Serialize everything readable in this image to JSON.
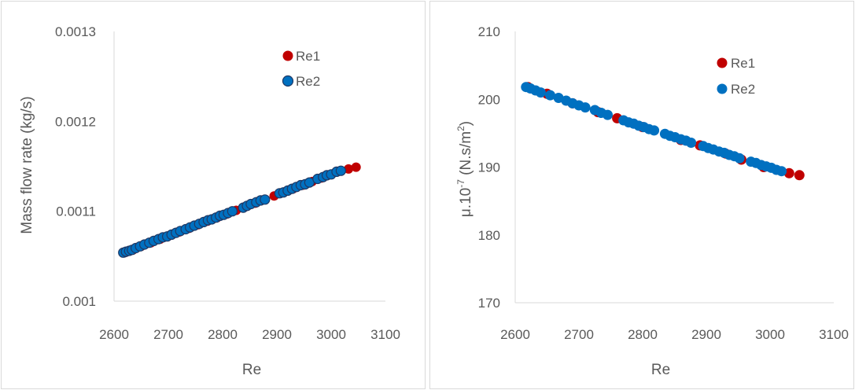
{
  "colors": {
    "Re1": "#C00000",
    "Re2": "#0070C0",
    "Re2_outline": "#1F3864",
    "axis": "#D9D9D9",
    "text": "#595959"
  },
  "chart_data": [
    {
      "type": "scatter",
      "xlabel": "Re",
      "ylabel": "Mass flow rate (kg/s)",
      "xlim": [
        2600,
        3100
      ],
      "ylim": [
        0.001,
        0.0013
      ],
      "xticks": [
        2600,
        2700,
        2800,
        2900,
        3000,
        3100
      ],
      "yticks": [
        0.001,
        0.0011,
        0.0012,
        0.0013
      ],
      "xtick_labels": [
        "2600",
        "2700",
        "2800",
        "2900",
        "3000",
        "3100"
      ],
      "ytick_labels": [
        "0.001",
        "0.0011",
        "0.0012",
        "0.0013"
      ],
      "grid": false,
      "legend": "top-right",
      "series": [
        {
          "name": "Re1",
          "color": "#C00000",
          "x": [
            2620,
            2635,
            2650,
            2668,
            2685,
            2702,
            2720,
            2738,
            2755,
            2772,
            2790,
            2808,
            2825,
            2842,
            2860,
            2878,
            2895,
            2912,
            2930,
            2948,
            2965,
            2982,
            3000,
            3018,
            3032,
            3046
          ],
          "y": [
            0.001054,
            0.001057,
            0.001061,
            0.001065,
            0.001069,
            0.001073,
            0.001077,
            0.001081,
            0.001085,
            0.001089,
            0.001093,
            0.001097,
            0.001101,
            0.001105,
            0.001109,
            0.001113,
            0.001117,
            0.001121,
            0.001125,
            0.001129,
            0.001133,
            0.001137,
            0.001141,
            0.001145,
            0.001147,
            0.001149
          ]
        },
        {
          "name": "Re2",
          "color": "#0070C0",
          "x": [
            2617,
            2622,
            2628,
            2633,
            2640,
            2648,
            2656,
            2665,
            2673,
            2682,
            2690,
            2698,
            2706,
            2714,
            2722,
            2732,
            2740,
            2748,
            2757,
            2765,
            2773,
            2780,
            2788,
            2795,
            2802,
            2810,
            2818,
            2838,
            2845,
            2852,
            2862,
            2870,
            2878,
            2905,
            2912,
            2920,
            2928,
            2936,
            2944,
            2952,
            2960,
            2975,
            2985,
            2992,
            3000,
            3010,
            3018
          ],
          "y": [
            0.001054,
            0.001055,
            0.001056,
            0.001057,
            0.001059,
            0.001061,
            0.001063,
            0.001065,
            0.001067,
            0.001069,
            0.001071,
            0.001072,
            0.001074,
            0.001076,
            0.001078,
            0.00108,
            0.001082,
            0.001084,
            0.001086,
            0.001088,
            0.00109,
            0.001091,
            0.001093,
            0.001095,
            0.001096,
            0.001098,
            0.0011,
            0.001104,
            0.001106,
            0.001108,
            0.00111,
            0.001112,
            0.001113,
            0.00112,
            0.001121,
            0.001123,
            0.001125,
            0.001127,
            0.001129,
            0.00113,
            0.001132,
            0.001136,
            0.001138,
            0.00114,
            0.001141,
            0.001144,
            0.001145
          ]
        }
      ]
    },
    {
      "type": "scatter",
      "xlabel": "Re",
      "ylabel": "μ.10-7 (N.s/m2)",
      "ylabel_parts": [
        "μ.10",
        "-7",
        " (N.s/m",
        "2",
        ")"
      ],
      "xlim": [
        2600,
        3100
      ],
      "ylim": [
        170,
        210
      ],
      "xticks": [
        2600,
        2700,
        2800,
        2900,
        3000,
        3100
      ],
      "yticks": [
        170,
        180,
        190,
        200,
        210
      ],
      "xtick_labels": [
        "2600",
        "2700",
        "2800",
        "2900",
        "3000",
        "3100"
      ],
      "ytick_labels": [
        "170",
        "180",
        "190",
        "200",
        "210"
      ],
      "grid": false,
      "legend": "top-right",
      "series": [
        {
          "name": "Re1",
          "color": "#C00000",
          "x": [
            2620,
            2650,
            2690,
            2730,
            2760,
            2800,
            2860,
            2890,
            2930,
            2955,
            2990,
            3030,
            3046
          ],
          "y": [
            201.8,
            200.8,
            199.4,
            198.1,
            197.2,
            195.9,
            194.0,
            193.2,
            192.0,
            191.1,
            190.0,
            189.1,
            188.8
          ]
        },
        {
          "name": "Re2",
          "color": "#0070C0",
          "x": [
            2617,
            2624,
            2632,
            2640,
            2655,
            2668,
            2680,
            2690,
            2700,
            2710,
            2725,
            2735,
            2745,
            2770,
            2778,
            2786,
            2794,
            2802,
            2810,
            2818,
            2835,
            2843,
            2851,
            2860,
            2868,
            2876,
            2895,
            2903,
            2911,
            2920,
            2928,
            2936,
            2944,
            2952,
            2970,
            2978,
            2986,
            2994,
            3002,
            3010,
            3018
          ],
          "y": [
            201.8,
            201.6,
            201.3,
            201.0,
            200.6,
            200.2,
            199.8,
            199.4,
            199.1,
            198.8,
            198.4,
            198.0,
            197.7,
            196.9,
            196.6,
            196.4,
            196.1,
            195.9,
            195.6,
            195.4,
            194.9,
            194.6,
            194.4,
            194.1,
            193.9,
            193.6,
            193.1,
            192.8,
            192.6,
            192.3,
            192.1,
            191.8,
            191.6,
            191.3,
            190.8,
            190.6,
            190.3,
            190.1,
            189.9,
            189.6,
            189.4
          ]
        }
      ]
    }
  ]
}
